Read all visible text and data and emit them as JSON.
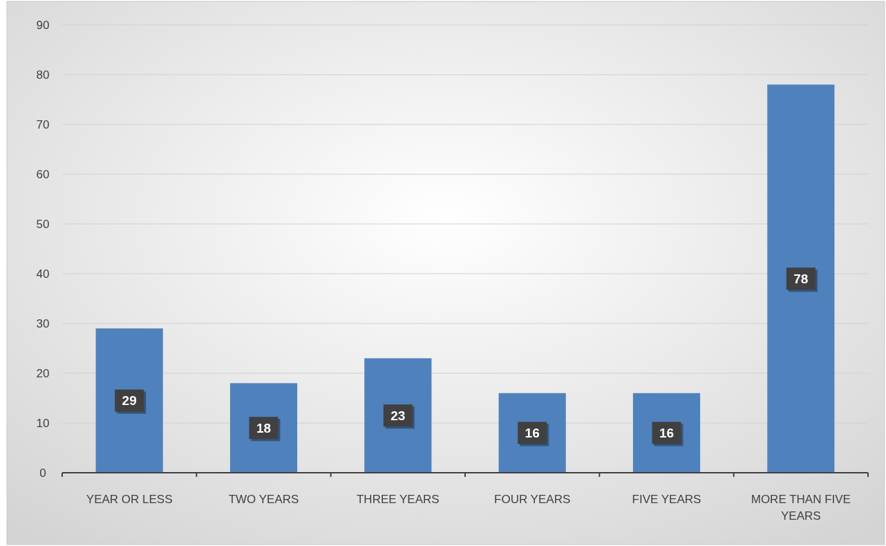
{
  "chart_data": {
    "type": "bar",
    "categories": [
      "YEAR OR LESS",
      "TWO YEARS",
      "THREE YEARS",
      "FOUR YEARS",
      "FIVE YEARS",
      "MORE THAN FIVE YEARS"
    ],
    "values": [
      29,
      18,
      23,
      16,
      16,
      78
    ],
    "color": "#4f81bd",
    "ylim": [
      0,
      90
    ],
    "yticks": [
      0,
      10,
      20,
      30,
      40,
      50,
      60,
      70,
      80,
      90
    ],
    "grid": "y",
    "data_labels": true
  }
}
